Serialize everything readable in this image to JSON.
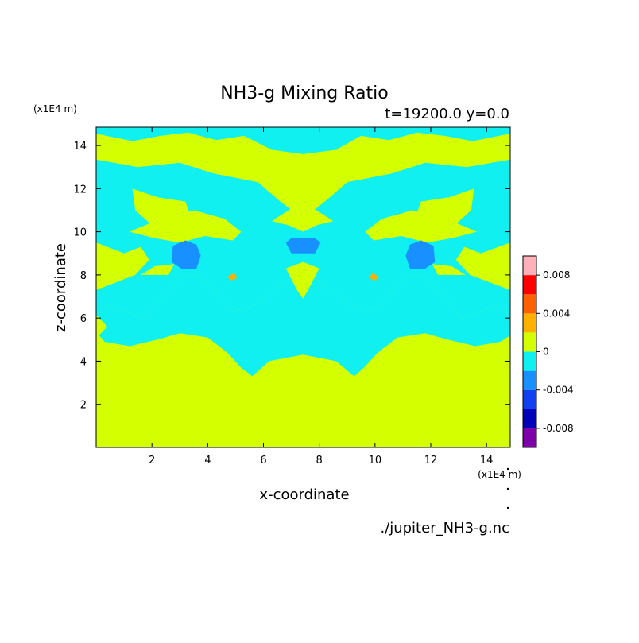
{
  "chart_data": {
    "type": "heatmap",
    "title": "NH3-g Mixing Ratio",
    "subtitle": "t=19200.0 y=0.0",
    "xlabel": "x-coordinate",
    "ylabel": "z-coordinate",
    "x_unit": "(x1E4 m)",
    "y_unit": "(x1E4 m)",
    "xlim": [
      0,
      14.85
    ],
    "ylim": [
      0,
      14.85
    ],
    "x_ticks": [
      2,
      4,
      6,
      8,
      10,
      12,
      14
    ],
    "y_ticks": [
      2,
      4,
      6,
      8,
      10,
      12,
      14
    ],
    "grid": false,
    "source_file": "./jupiter_NH3-g.nc",
    "colorbar": {
      "placement": "right",
      "levels": [
        {
          "from": -0.01,
          "to": -0.008,
          "color": "#7e00a8"
        },
        {
          "from": -0.008,
          "to": -0.006,
          "color": "#0000b8"
        },
        {
          "from": -0.006,
          "to": -0.004,
          "color": "#1040f0"
        },
        {
          "from": -0.004,
          "to": -0.002,
          "color": "#1890ff"
        },
        {
          "from": -0.002,
          "to": 0.0,
          "color": "#10f0f0"
        },
        {
          "from": 0.0,
          "to": 0.002,
          "color": "#d4ff00"
        },
        {
          "from": 0.002,
          "to": 0.004,
          "color": "#ffb000"
        },
        {
          "from": 0.004,
          "to": 0.006,
          "color": "#ff6000"
        },
        {
          "from": 0.006,
          "to": 0.008,
          "color": "#ff0000"
        },
        {
          "from": 0.008,
          "to": 0.01,
          "color": "#ffb0b8"
        }
      ],
      "tick_values": [
        0.008,
        0.004,
        0,
        -0.004,
        -0.008
      ],
      "tick_labels": [
        "0.008",
        "0.004",
        "0",
        "-0.004",
        "-0.008"
      ]
    },
    "regions": [
      {
        "level": -0.001,
        "points": [
          [
            0,
            14.85
          ],
          [
            14.85,
            14.85
          ],
          [
            14.85,
            14.55
          ],
          [
            13.5,
            14.2
          ],
          [
            12.5,
            14.45
          ],
          [
            11.5,
            14.6
          ],
          [
            10.5,
            14.25
          ],
          [
            9.5,
            14.45
          ],
          [
            8.6,
            13.8
          ],
          [
            7.42,
            13.6
          ],
          [
            6.3,
            13.8
          ],
          [
            5.3,
            14.45
          ],
          [
            4.3,
            14.25
          ],
          [
            3.3,
            14.6
          ],
          [
            2.3,
            14.45
          ],
          [
            1.3,
            14.2
          ],
          [
            0,
            14.55
          ]
        ]
      },
      {
        "level": -0.001,
        "points": [
          [
            0,
            13.35
          ],
          [
            1.5,
            13.0
          ],
          [
            3.0,
            13.2
          ],
          [
            4.2,
            12.7
          ],
          [
            5.8,
            12.3
          ],
          [
            6.6,
            11.4
          ],
          [
            7.42,
            10.6
          ],
          [
            8.2,
            11.4
          ],
          [
            9.0,
            12.3
          ],
          [
            10.6,
            12.7
          ],
          [
            11.8,
            13.2
          ],
          [
            13.3,
            13.0
          ],
          [
            14.85,
            13.35
          ],
          [
            14.85,
            9.5
          ],
          [
            13.8,
            9.0
          ],
          [
            13.2,
            9.3
          ],
          [
            12.9,
            8.7
          ],
          [
            13.4,
            8.0
          ],
          [
            14.85,
            7.3
          ],
          [
            14.85,
            6.15
          ],
          [
            14.4,
            6.6
          ],
          [
            13.1,
            6.0
          ],
          [
            12.5,
            6.9
          ],
          [
            11.7,
            8.0
          ],
          [
            11.0,
            7.9
          ],
          [
            10.4,
            7.0
          ],
          [
            9.9,
            6.3
          ],
          [
            9.1,
            6.6
          ],
          [
            8.3,
            7.4
          ],
          [
            7.42,
            8.3
          ],
          [
            6.5,
            7.4
          ],
          [
            5.7,
            6.6
          ],
          [
            4.9,
            6.3
          ],
          [
            4.4,
            7.0
          ],
          [
            3.8,
            7.9
          ],
          [
            3.1,
            8.0
          ],
          [
            2.3,
            6.9
          ],
          [
            1.7,
            6.0
          ],
          [
            0.4,
            6.6
          ],
          [
            0,
            6.15
          ],
          [
            0,
            7.3
          ],
          [
            1.4,
            8.0
          ],
          [
            1.9,
            8.7
          ],
          [
            1.6,
            9.3
          ],
          [
            1.0,
            9.0
          ],
          [
            0,
            9.5
          ]
        ]
      },
      {
        "level": -0.001,
        "points": [
          [
            0,
            6.15
          ],
          [
            0.4,
            5.6
          ],
          [
            0.1,
            5.2
          ],
          [
            0.3,
            4.9
          ],
          [
            1.2,
            4.7
          ],
          [
            2.2,
            5.0
          ],
          [
            3.0,
            5.3
          ],
          [
            4.0,
            5.1
          ],
          [
            4.7,
            4.4
          ],
          [
            5.2,
            3.7
          ],
          [
            5.6,
            3.3
          ],
          [
            6.2,
            4.0
          ],
          [
            7.42,
            4.3
          ],
          [
            8.6,
            4.0
          ],
          [
            9.25,
            3.3
          ],
          [
            9.6,
            3.7
          ],
          [
            10.1,
            4.4
          ],
          [
            10.8,
            5.1
          ],
          [
            11.8,
            5.3
          ],
          [
            12.6,
            5.0
          ],
          [
            13.6,
            4.7
          ],
          [
            14.5,
            4.9
          ],
          [
            14.85,
            5.2
          ],
          [
            14.85,
            6.15
          ],
          [
            14.4,
            6.6
          ],
          [
            13.1,
            6.0
          ],
          [
            12.5,
            6.9
          ],
          [
            11.7,
            8.0
          ],
          [
            11.0,
            7.9
          ],
          [
            10.4,
            7.0
          ],
          [
            9.9,
            6.3
          ],
          [
            9.1,
            6.6
          ],
          [
            8.3,
            7.4
          ],
          [
            7.42,
            8.3
          ],
          [
            6.5,
            7.4
          ],
          [
            5.7,
            6.6
          ],
          [
            4.9,
            6.3
          ],
          [
            4.4,
            7.0
          ],
          [
            3.8,
            7.9
          ],
          [
            3.1,
            8.0
          ],
          [
            2.3,
            6.9
          ],
          [
            1.7,
            6.0
          ],
          [
            0.4,
            6.6
          ]
        ]
      },
      {
        "level": 0.001,
        "points": [
          [
            1.2,
            10.0
          ],
          [
            2.3,
            10.6
          ],
          [
            3.5,
            11.0
          ],
          [
            4.6,
            10.6
          ],
          [
            5.2,
            10.0
          ],
          [
            4.9,
            9.6
          ],
          [
            3.9,
            9.8
          ],
          [
            3.0,
            9.5
          ],
          [
            2.1,
            9.7
          ]
        ]
      },
      {
        "level": 0.001,
        "points": [
          [
            13.65,
            10.0
          ],
          [
            12.55,
            10.6
          ],
          [
            11.35,
            11.0
          ],
          [
            10.25,
            10.6
          ],
          [
            9.65,
            10.0
          ],
          [
            9.95,
            9.6
          ],
          [
            10.95,
            9.8
          ],
          [
            11.85,
            9.5
          ],
          [
            12.75,
            9.7
          ]
        ]
      },
      {
        "level": 0.001,
        "points": [
          [
            1.3,
            12.0
          ],
          [
            2.2,
            11.6
          ],
          [
            3.2,
            11.4
          ],
          [
            3.5,
            10.3
          ],
          [
            2.6,
            9.6
          ],
          [
            2.0,
            10.3
          ],
          [
            1.4,
            11.0
          ]
        ]
      },
      {
        "level": 0.001,
        "points": [
          [
            13.55,
            12.0
          ],
          [
            12.65,
            11.6
          ],
          [
            11.65,
            11.4
          ],
          [
            11.35,
            10.3
          ],
          [
            12.25,
            9.6
          ],
          [
            12.85,
            10.3
          ],
          [
            13.45,
            11.0
          ]
        ]
      },
      {
        "level": 0.001,
        "points": [
          [
            6.3,
            10.5
          ],
          [
            6.9,
            11.0
          ],
          [
            7.42,
            11.4
          ],
          [
            7.9,
            11.0
          ],
          [
            8.5,
            10.5
          ],
          [
            7.9,
            10.3
          ],
          [
            7.42,
            10.0
          ],
          [
            6.9,
            10.3
          ]
        ]
      },
      {
        "level": 0.001,
        "points": [
          [
            6.8,
            8.3
          ],
          [
            7.2,
            7.3
          ],
          [
            7.42,
            6.9
          ],
          [
            7.6,
            7.3
          ],
          [
            8.0,
            8.3
          ],
          [
            7.42,
            8.6
          ]
        ]
      },
      {
        "level": 0.001,
        "points": [
          [
            1.6,
            8.0
          ],
          [
            2.1,
            8.4
          ],
          [
            2.8,
            8.5
          ],
          [
            2.6,
            8.0
          ]
        ]
      },
      {
        "level": 0.001,
        "points": [
          [
            13.25,
            8.0
          ],
          [
            12.75,
            8.4
          ],
          [
            12.05,
            8.5
          ],
          [
            12.25,
            8.0
          ]
        ]
      },
      {
        "level": -0.003,
        "points": [
          [
            2.75,
            9.35
          ],
          [
            3.2,
            9.6
          ],
          [
            3.6,
            9.4
          ],
          [
            3.75,
            8.9
          ],
          [
            3.6,
            8.3
          ],
          [
            3.1,
            8.25
          ],
          [
            2.7,
            8.6
          ]
        ]
      },
      {
        "level": -0.003,
        "points": [
          [
            12.1,
            9.35
          ],
          [
            11.65,
            9.6
          ],
          [
            11.25,
            9.4
          ],
          [
            11.1,
            8.9
          ],
          [
            11.25,
            8.3
          ],
          [
            11.75,
            8.25
          ],
          [
            12.15,
            8.6
          ]
        ]
      },
      {
        "level": -0.003,
        "points": [
          [
            6.8,
            9.5
          ],
          [
            7.0,
            9.7
          ],
          [
            7.85,
            9.7
          ],
          [
            8.05,
            9.5
          ],
          [
            7.85,
            9.0
          ],
          [
            7.0,
            9.0
          ]
        ]
      },
      {
        "level": 0.003,
        "points": [
          [
            4.7,
            7.9
          ],
          [
            4.95,
            8.1
          ],
          [
            5.05,
            7.85
          ],
          [
            4.85,
            7.75
          ]
        ]
      },
      {
        "level": 0.003,
        "points": [
          [
            10.15,
            7.9
          ],
          [
            9.9,
            8.1
          ],
          [
            9.8,
            7.85
          ],
          [
            10.0,
            7.75
          ]
        ]
      }
    ]
  }
}
